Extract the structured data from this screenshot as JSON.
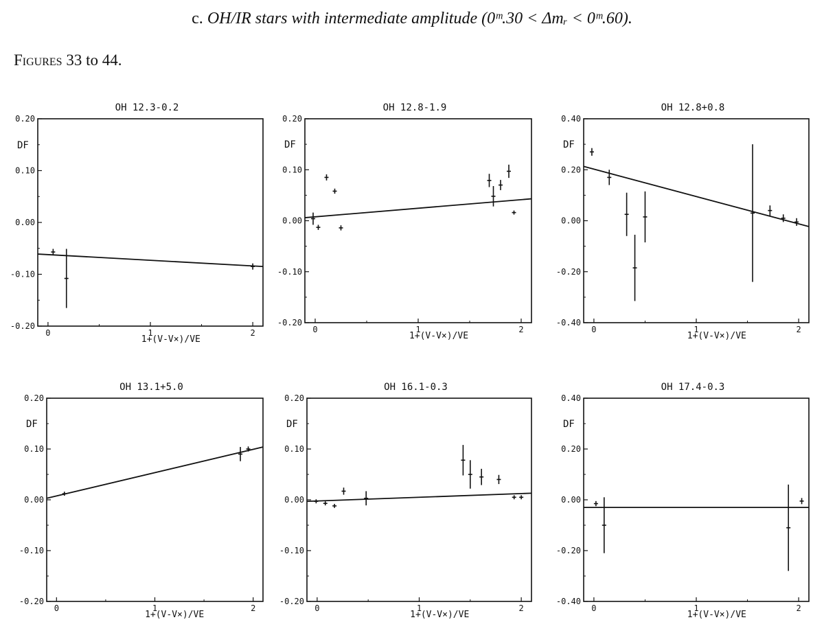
{
  "heading": {
    "lead": "c.",
    "text": "OH/IR stars with intermediate amplitude (0ᵐ̲.30 < Δmᵣ < 0ᵐ.60).",
    "display": "OH/IR stars with intermediate amplitude (0ᵐ.30 < Δmᵣ < 0ᵐ.60)."
  },
  "figures_label": {
    "word": "Figures",
    "range": "33 to 44."
  },
  "colors": {
    "ink": "#111111",
    "background": "#ffffff"
  },
  "chart_data": [
    {
      "type": "scatter",
      "title": "OH 12.3-0.2",
      "ylabel": "DF",
      "xlabel": "1+(V-V×)/VE",
      "xlim": [
        -0.1,
        2.1
      ],
      "ylim": [
        -0.2,
        0.2
      ],
      "xticks": [
        "0",
        "1",
        "2"
      ],
      "yticks": [
        "0.20",
        "0.10",
        "0.00",
        "-0.10",
        "-0.20"
      ],
      "points": [
        {
          "x": 0.05,
          "y": -0.057,
          "err": 0.006
        },
        {
          "x": 0.18,
          "y": -0.108,
          "err": 0.057
        },
        {
          "x": 2.0,
          "y": -0.085,
          "err": 0.006
        }
      ],
      "fit": {
        "x": [
          -0.1,
          2.1
        ],
        "y": [
          -0.061,
          -0.085
        ]
      }
    },
    {
      "type": "scatter",
      "title": "OH 12.8-1.9",
      "ylabel": "DF",
      "xlabel": "1+(V-V×)/VE",
      "xlim": [
        -0.1,
        2.1
      ],
      "ylim": [
        -0.2,
        0.2
      ],
      "xticks": [
        "0",
        "1",
        "2"
      ],
      "yticks": [
        "0.20",
        "0.10",
        "0.00",
        "-0.10",
        "-0.20"
      ],
      "points": [
        {
          "x": -0.02,
          "y": 0.004,
          "err": 0.012
        },
        {
          "x": 0.03,
          "y": -0.013,
          "err": 0.005
        },
        {
          "x": 0.11,
          "y": 0.085,
          "err": 0.006
        },
        {
          "x": 0.19,
          "y": 0.058,
          "err": 0.005
        },
        {
          "x": 0.25,
          "y": -0.014,
          "err": 0.005
        },
        {
          "x": 1.69,
          "y": 0.079,
          "err": 0.013
        },
        {
          "x": 1.73,
          "y": 0.048,
          "err": 0.02
        },
        {
          "x": 1.8,
          "y": 0.07,
          "err": 0.01
        },
        {
          "x": 1.88,
          "y": 0.097,
          "err": 0.013
        },
        {
          "x": 1.93,
          "y": 0.016,
          "err": 0.004
        }
      ],
      "fit": {
        "x": [
          -0.1,
          2.1
        ],
        "y": [
          0.006,
          0.043
        ]
      }
    },
    {
      "type": "scatter",
      "title": "OH 12.8+0.8",
      "ylabel": "DF",
      "xlabel": "1+(V-V×)/VE",
      "xlim": [
        -0.1,
        2.1
      ],
      "ylim": [
        -0.4,
        0.4
      ],
      "xticks": [
        "0",
        "1",
        "2"
      ],
      "yticks": [
        "0.40",
        "0.20",
        "0.00",
        "-0.20",
        "-0.40"
      ],
      "points": [
        {
          "x": -0.02,
          "y": 0.27,
          "err": 0.015
        },
        {
          "x": 0.15,
          "y": 0.17,
          "err": 0.03
        },
        {
          "x": 0.32,
          "y": 0.025,
          "err": 0.085
        },
        {
          "x": 0.4,
          "y": -0.185,
          "err": 0.13
        },
        {
          "x": 0.5,
          "y": 0.015,
          "err": 0.1
        },
        {
          "x": 1.55,
          "y": 0.03,
          "err": 0.27
        },
        {
          "x": 1.72,
          "y": 0.04,
          "err": 0.02
        },
        {
          "x": 1.85,
          "y": 0.01,
          "err": 0.015
        },
        {
          "x": 1.98,
          "y": -0.005,
          "err": 0.015
        }
      ],
      "fit": {
        "x": [
          -0.1,
          2.1
        ],
        "y": [
          0.213,
          -0.023
        ]
      }
    },
    {
      "type": "scatter",
      "title": "OH 13.1+5.0",
      "ylabel": "DF",
      "xlabel": "1+(V-V×)/VE",
      "xlim": [
        -0.1,
        2.1
      ],
      "ylim": [
        -0.2,
        0.2
      ],
      "xticks": [
        "0",
        "1",
        "2"
      ],
      "yticks": [
        "0.20",
        "0.10",
        "0.00",
        "-0.10",
        "-0.20"
      ],
      "points": [
        {
          "x": 0.08,
          "y": 0.012,
          "err": 0.004
        },
        {
          "x": 1.87,
          "y": 0.09,
          "err": 0.014
        },
        {
          "x": 1.95,
          "y": 0.1,
          "err": 0.005
        }
      ],
      "fit": {
        "x": [
          -0.1,
          2.1
        ],
        "y": [
          0.003,
          0.104
        ]
      }
    },
    {
      "type": "scatter",
      "title": "OH 16.1-0.3",
      "ylabel": "DF",
      "xlabel": "1+(V-V×)/VE",
      "xlim": [
        -0.1,
        2.1
      ],
      "ylim": [
        -0.2,
        0.2
      ],
      "xticks": [
        "0",
        "1",
        "2"
      ],
      "yticks": [
        "0.20",
        "0.10",
        "0.00",
        "-0.10",
        "-0.20"
      ],
      "points": [
        {
          "x": -0.01,
          "y": -0.003,
          "err": 0.004
        },
        {
          "x": 0.08,
          "y": -0.007,
          "err": 0.004
        },
        {
          "x": 0.17,
          "y": -0.012,
          "err": 0.004
        },
        {
          "x": 0.26,
          "y": 0.017,
          "err": 0.007
        },
        {
          "x": 0.48,
          "y": 0.003,
          "err": 0.014
        },
        {
          "x": 1.43,
          "y": 0.078,
          "err": 0.03
        },
        {
          "x": 1.5,
          "y": 0.05,
          "err": 0.028
        },
        {
          "x": 1.61,
          "y": 0.045,
          "err": 0.016
        },
        {
          "x": 1.78,
          "y": 0.04,
          "err": 0.009
        },
        {
          "x": 1.93,
          "y": 0.005,
          "err": 0.004
        },
        {
          "x": 2.0,
          "y": 0.005,
          "err": 0.004
        }
      ],
      "fit": {
        "x": [
          -0.1,
          2.1
        ],
        "y": [
          -0.003,
          0.013
        ]
      }
    },
    {
      "type": "scatter",
      "title": "OH 17.4-0.3",
      "ylabel": "DF",
      "xlabel": "1+(V-V×)/VE",
      "xlim": [
        -0.1,
        2.1
      ],
      "ylim": [
        -0.4,
        0.4
      ],
      "xticks": [
        "0",
        "1",
        "2"
      ],
      "yticks": [
        "0.40",
        "0.20",
        "0.00",
        "-0.20",
        "-0.40"
      ],
      "points": [
        {
          "x": 0.02,
          "y": -0.015,
          "err": 0.01
        },
        {
          "x": 0.1,
          "y": -0.1,
          "err": 0.11
        },
        {
          "x": 1.9,
          "y": -0.11,
          "err": 0.17
        },
        {
          "x": 2.03,
          "y": -0.005,
          "err": 0.012
        }
      ],
      "fit": {
        "x": [
          -0.1,
          2.1
        ],
        "y": [
          -0.03,
          -0.03
        ]
      }
    }
  ]
}
